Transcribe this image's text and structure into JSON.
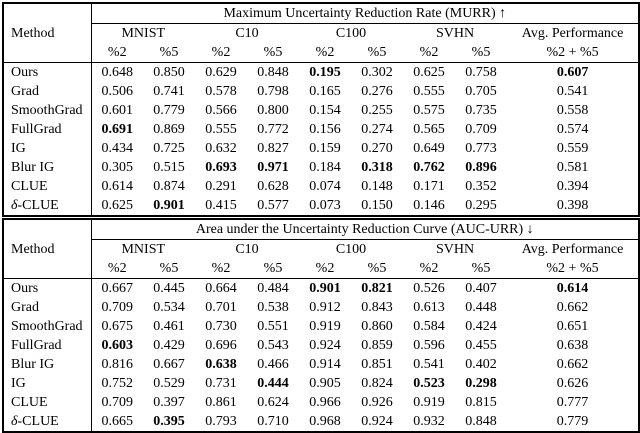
{
  "page": {
    "background": "#ffffff",
    "text_color": "#000000"
  },
  "tables": [
    {
      "id": "murr",
      "title": "Maximum Uncertainty Reduction Rate (MURR) ↑",
      "method_header": "Method",
      "groups": [
        "MNIST",
        "C10",
        "C100",
        "SVHN"
      ],
      "avg_header": "Avg. Performance",
      "subheaders": [
        "%2",
        "%5",
        "%2",
        "%5",
        "%2",
        "%5",
        "%2",
        "%5"
      ],
      "avg_subheader": "%2 + %5",
      "rows": [
        {
          "method": "Ours",
          "values": [
            "0.648",
            "0.850",
            "0.629",
            "0.848",
            "0.195",
            "0.302",
            "0.625",
            "0.758",
            "0.607"
          ],
          "bold": [
            4,
            8
          ]
        },
        {
          "method": "Grad",
          "values": [
            "0.506",
            "0.741",
            "0.578",
            "0.798",
            "0.165",
            "0.276",
            "0.555",
            "0.705",
            "0.541"
          ],
          "bold": []
        },
        {
          "method": "SmoothGrad",
          "values": [
            "0.601",
            "0.779",
            "0.566",
            "0.800",
            "0.154",
            "0.255",
            "0.575",
            "0.735",
            "0.558"
          ],
          "bold": []
        },
        {
          "method": "FullGrad",
          "values": [
            "0.691",
            "0.869",
            "0.555",
            "0.772",
            "0.156",
            "0.274",
            "0.565",
            "0.709",
            "0.574"
          ],
          "bold": [
            0
          ]
        },
        {
          "method": "IG",
          "values": [
            "0.434",
            "0.725",
            "0.632",
            "0.827",
            "0.159",
            "0.270",
            "0.649",
            "0.773",
            "0.559"
          ],
          "bold": []
        },
        {
          "method": "Blur IG",
          "values": [
            "0.305",
            "0.515",
            "0.693",
            "0.971",
            "0.184",
            "0.318",
            "0.762",
            "0.896",
            "0.581"
          ],
          "bold": [
            2,
            3,
            5,
            6,
            7
          ]
        },
        {
          "method": "CLUE",
          "values": [
            "0.614",
            "0.874",
            "0.291",
            "0.628",
            "0.074",
            "0.148",
            "0.171",
            "0.352",
            "0.394"
          ],
          "bold": []
        },
        {
          "method": "δ-CLUE",
          "values": [
            "0.625",
            "0.901",
            "0.415",
            "0.577",
            "0.073",
            "0.150",
            "0.146",
            "0.295",
            "0.398"
          ],
          "bold": [
            1
          ]
        }
      ]
    },
    {
      "id": "aucurr",
      "title": "Area under the Uncertainty Reduction Curve (AUC-URR) ↓",
      "method_header": "Method",
      "groups": [
        "MNIST",
        "C10",
        "C100",
        "SVHN"
      ],
      "avg_header": "Avg. Performance",
      "subheaders": [
        "%2",
        "%5",
        "%2",
        "%5",
        "%2",
        "%5",
        "%2",
        "%5"
      ],
      "avg_subheader": "%2 + %5",
      "rows": [
        {
          "method": "Ours",
          "values": [
            "0.667",
            "0.445",
            "0.664",
            "0.484",
            "0.901",
            "0.821",
            "0.526",
            "0.407",
            "0.614"
          ],
          "bold": [
            4,
            5,
            8
          ]
        },
        {
          "method": "Grad",
          "values": [
            "0.709",
            "0.534",
            "0.701",
            "0.538",
            "0.912",
            "0.843",
            "0.613",
            "0.448",
            "0.662"
          ],
          "bold": []
        },
        {
          "method": "SmoothGrad",
          "values": [
            "0.675",
            "0.461",
            "0.730",
            "0.551",
            "0.919",
            "0.860",
            "0.584",
            "0.424",
            "0.651"
          ],
          "bold": []
        },
        {
          "method": "FullGrad",
          "values": [
            "0.603",
            "0.429",
            "0.696",
            "0.543",
            "0.924",
            "0.859",
            "0.596",
            "0.455",
            "0.638"
          ],
          "bold": [
            0
          ]
        },
        {
          "method": "Blur IG",
          "values": [
            "0.816",
            "0.667",
            "0.638",
            "0.466",
            "0.914",
            "0.851",
            "0.541",
            "0.402",
            "0.662"
          ],
          "bold": [
            2
          ]
        },
        {
          "method": "IG",
          "values": [
            "0.752",
            "0.529",
            "0.731",
            "0.444",
            "0.905",
            "0.824",
            "0.523",
            "0.298",
            "0.626"
          ],
          "bold": [
            3,
            6,
            7
          ]
        },
        {
          "method": "CLUE",
          "values": [
            "0.709",
            "0.397",
            "0.861",
            "0.624",
            "0.966",
            "0.926",
            "0.919",
            "0.815",
            "0.777"
          ],
          "bold": []
        },
        {
          "method": "δ-CLUE",
          "values": [
            "0.665",
            "0.395",
            "0.793",
            "0.710",
            "0.968",
            "0.924",
            "0.932",
            "0.848",
            "0.779"
          ],
          "bold": [
            1
          ]
        }
      ]
    }
  ]
}
